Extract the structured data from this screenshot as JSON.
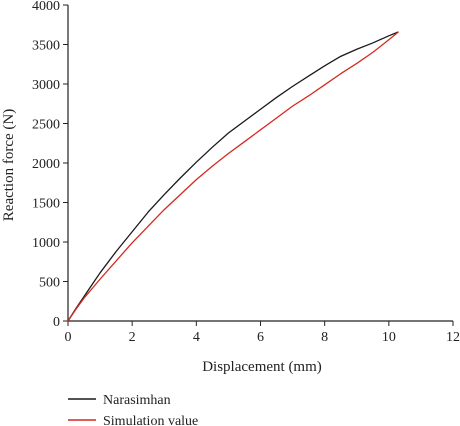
{
  "chart_data": {
    "type": "line",
    "title": "",
    "xlabel": "Displacement (mm)",
    "ylabel": "Reaction force (N)",
    "xlim": [
      0,
      12
    ],
    "ylim": [
      0,
      4000
    ],
    "xticks": [
      "0",
      "2",
      "4",
      "6",
      "8",
      "10",
      "12"
    ],
    "yticks": [
      "0",
      "500",
      "1000",
      "1500",
      "2000",
      "2500",
      "3000",
      "3500",
      "4000"
    ],
    "grid": false,
    "legend_position": "bottom-left, below plot",
    "series": [
      {
        "name": "Narasimhan",
        "color": "#1a1a1a",
        "x": [
          0,
          0.25,
          0.5,
          0.75,
          1.0,
          1.5,
          2.0,
          2.5,
          3.0,
          3.5,
          4.0,
          4.5,
          5.0,
          5.5,
          6.0,
          6.5,
          7.0,
          7.5,
          8.0,
          8.5,
          9.0,
          9.5,
          10.0,
          10.3
        ],
        "y": [
          0,
          160,
          310,
          460,
          610,
          880,
          1130,
          1380,
          1600,
          1810,
          2010,
          2200,
          2380,
          2530,
          2680,
          2830,
          2970,
          3100,
          3230,
          3350,
          3440,
          3520,
          3610,
          3660
        ]
      },
      {
        "name": "Simulation value",
        "color": "#d42a20",
        "x": [
          0,
          0.25,
          0.5,
          0.75,
          1.0,
          1.5,
          2.0,
          2.5,
          3.0,
          3.5,
          4.0,
          4.5,
          5.0,
          5.5,
          6.0,
          6.5,
          7.0,
          7.5,
          8.0,
          8.5,
          9.0,
          9.5,
          10.0,
          10.3
        ],
        "y": [
          0,
          150,
          290,
          410,
          530,
          760,
          990,
          1200,
          1410,
          1600,
          1790,
          1960,
          2120,
          2270,
          2420,
          2570,
          2720,
          2850,
          2990,
          3130,
          3260,
          3400,
          3560,
          3660
        ]
      }
    ]
  }
}
